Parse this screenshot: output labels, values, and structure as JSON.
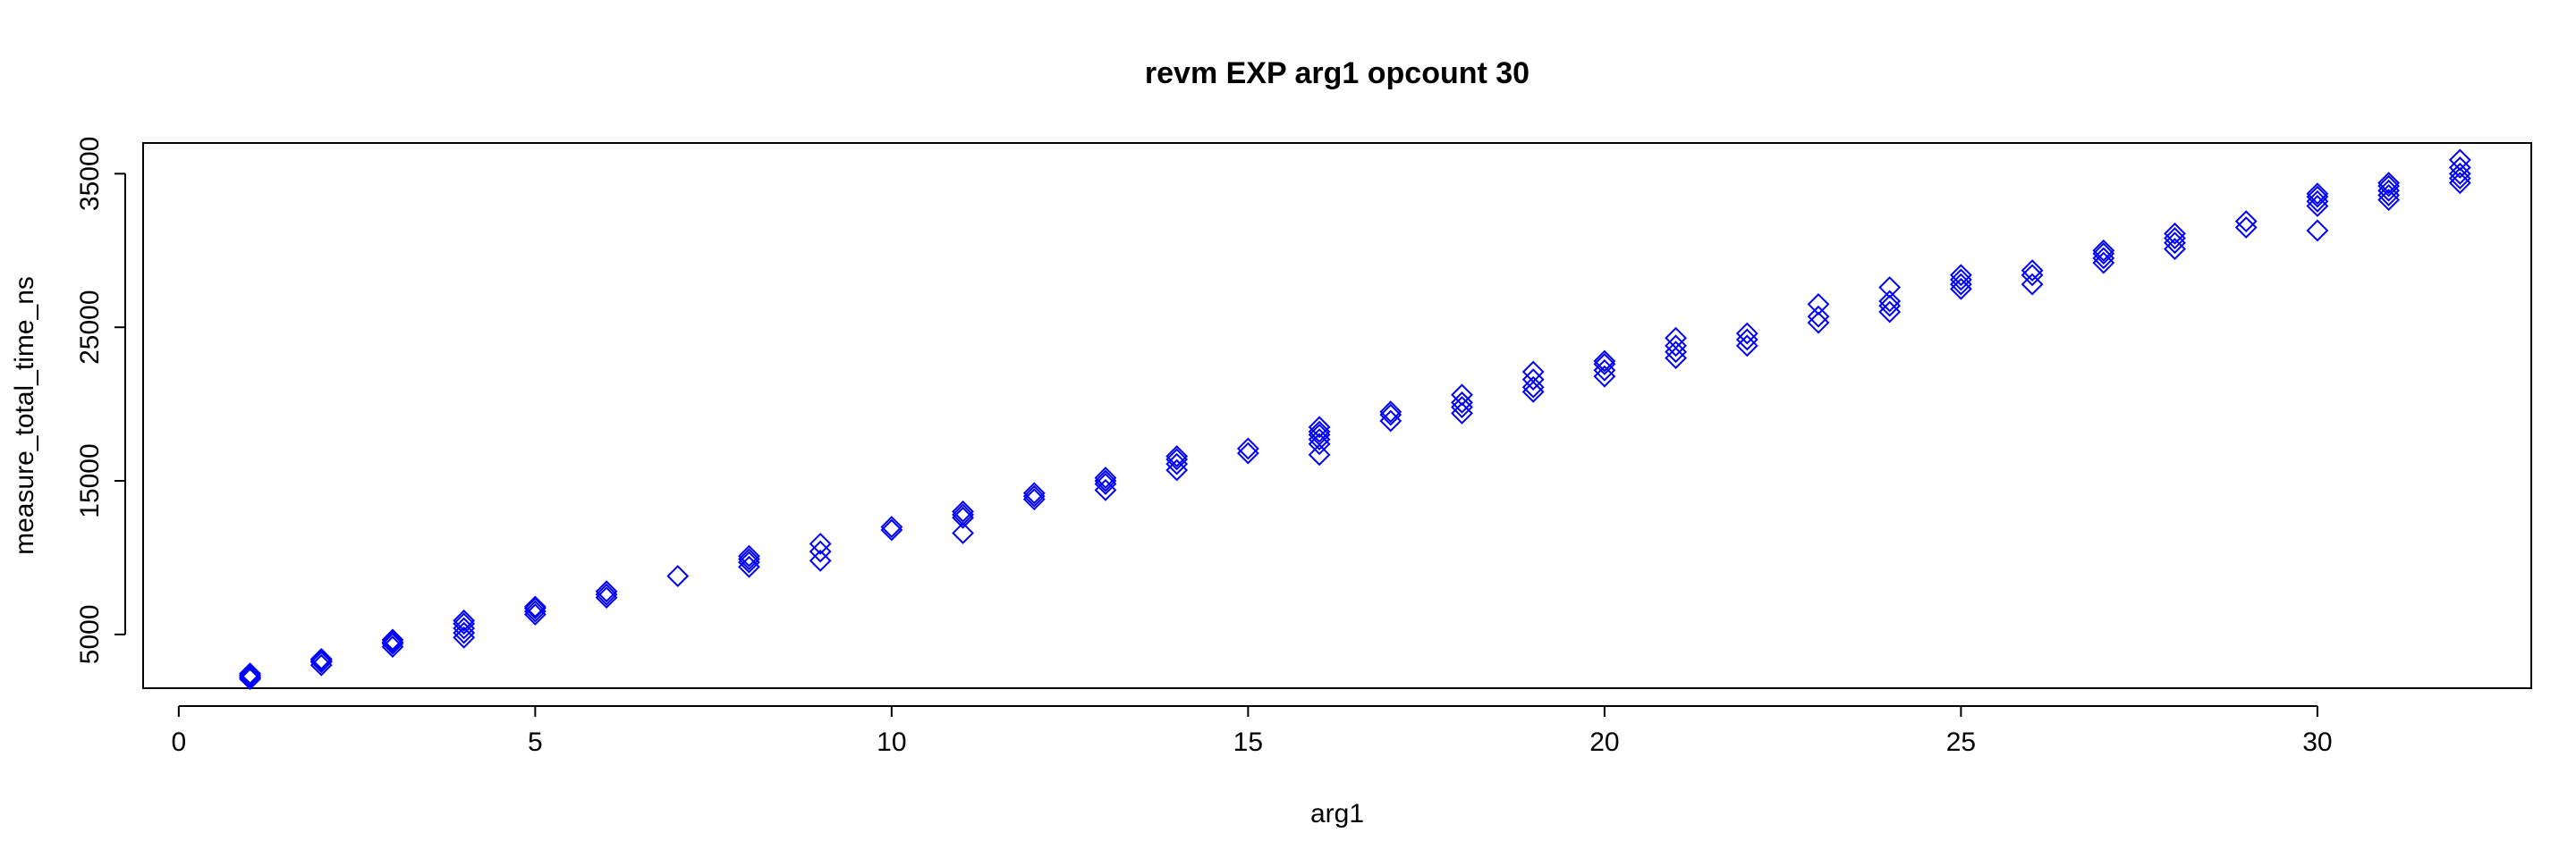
{
  "chart_data": {
    "type": "scatter",
    "title": "revm EXP arg1 opcount 30",
    "xlabel": "arg1",
    "ylabel": "measure_total_time_ns",
    "xlim": [
      -0.5,
      33.0
    ],
    "ylim": [
      1500,
      37000
    ],
    "xticks": [
      0,
      5,
      10,
      15,
      20,
      25,
      30
    ],
    "yticks": [
      5000,
      15000,
      25000,
      35000
    ],
    "grid": false,
    "marker": "open-diamond",
    "color": "#0000FF",
    "series": [
      {
        "points": [
          [
            1,
            2100
          ],
          [
            1,
            2250
          ],
          [
            1,
            2350
          ],
          [
            1,
            2450
          ],
          [
            1,
            2200
          ],
          [
            2,
            3000
          ],
          [
            2,
            3200
          ],
          [
            2,
            3300
          ],
          [
            2,
            3400
          ],
          [
            3,
            4200
          ],
          [
            3,
            4400
          ],
          [
            3,
            4500
          ],
          [
            3,
            4650
          ],
          [
            4,
            4800
          ],
          [
            4,
            5100
          ],
          [
            4,
            5400
          ],
          [
            4,
            5700
          ],
          [
            4,
            5900
          ],
          [
            5,
            6300
          ],
          [
            5,
            6500
          ],
          [
            5,
            6700
          ],
          [
            5,
            6800
          ],
          [
            6,
            7400
          ],
          [
            6,
            7600
          ],
          [
            6,
            7800
          ],
          [
            7,
            8800
          ],
          [
            8,
            9400
          ],
          [
            8,
            9700
          ],
          [
            8,
            9900
          ],
          [
            8,
            10100
          ],
          [
            9,
            9800
          ],
          [
            9,
            10400
          ],
          [
            9,
            10900
          ],
          [
            10,
            11800
          ],
          [
            10,
            12000
          ],
          [
            11,
            11600
          ],
          [
            11,
            12600
          ],
          [
            11,
            12800
          ],
          [
            11,
            13000
          ],
          [
            12,
            13800
          ],
          [
            12,
            14000
          ],
          [
            12,
            14200
          ],
          [
            13,
            14400
          ],
          [
            13,
            14800
          ],
          [
            13,
            15000
          ],
          [
            13,
            15200
          ],
          [
            14,
            15700
          ],
          [
            14,
            16100
          ],
          [
            14,
            16400
          ],
          [
            14,
            16600
          ],
          [
            15,
            16800
          ],
          [
            15,
            17100
          ],
          [
            16,
            16700
          ],
          [
            16,
            17400
          ],
          [
            16,
            17700
          ],
          [
            16,
            18000
          ],
          [
            16,
            18200
          ],
          [
            16,
            18500
          ],
          [
            17,
            18900
          ],
          [
            17,
            19300
          ],
          [
            17,
            19500
          ],
          [
            18,
            19400
          ],
          [
            18,
            19800
          ],
          [
            18,
            20100
          ],
          [
            18,
            20600
          ],
          [
            19,
            20800
          ],
          [
            19,
            21100
          ],
          [
            19,
            21600
          ],
          [
            19,
            22100
          ],
          [
            20,
            21800
          ],
          [
            20,
            22200
          ],
          [
            20,
            22600
          ],
          [
            20,
            22800
          ],
          [
            21,
            23000
          ],
          [
            21,
            23400
          ],
          [
            21,
            23800
          ],
          [
            21,
            24300
          ],
          [
            22,
            23800
          ],
          [
            22,
            24200
          ],
          [
            22,
            24600
          ],
          [
            23,
            25300
          ],
          [
            23,
            25700
          ],
          [
            23,
            26500
          ],
          [
            24,
            26000
          ],
          [
            24,
            26400
          ],
          [
            24,
            26700
          ],
          [
            24,
            27600
          ],
          [
            25,
            27500
          ],
          [
            25,
            27800
          ],
          [
            25,
            28100
          ],
          [
            25,
            28400
          ],
          [
            26,
            27800
          ],
          [
            26,
            28400
          ],
          [
            26,
            28700
          ],
          [
            27,
            29200
          ],
          [
            27,
            29500
          ],
          [
            27,
            29800
          ],
          [
            27,
            30000
          ],
          [
            28,
            30100
          ],
          [
            28,
            30500
          ],
          [
            28,
            30800
          ],
          [
            28,
            31100
          ],
          [
            29,
            31500
          ],
          [
            29,
            31900
          ],
          [
            30,
            31300
          ],
          [
            30,
            32900
          ],
          [
            30,
            33200
          ],
          [
            30,
            33500
          ],
          [
            30,
            33700
          ],
          [
            31,
            33300
          ],
          [
            31,
            33600
          ],
          [
            31,
            33900
          ],
          [
            31,
            34200
          ],
          [
            31,
            34400
          ],
          [
            32,
            34400
          ],
          [
            32,
            34700
          ],
          [
            32,
            35000
          ],
          [
            32,
            35400
          ],
          [
            32,
            35900
          ]
        ]
      }
    ]
  }
}
